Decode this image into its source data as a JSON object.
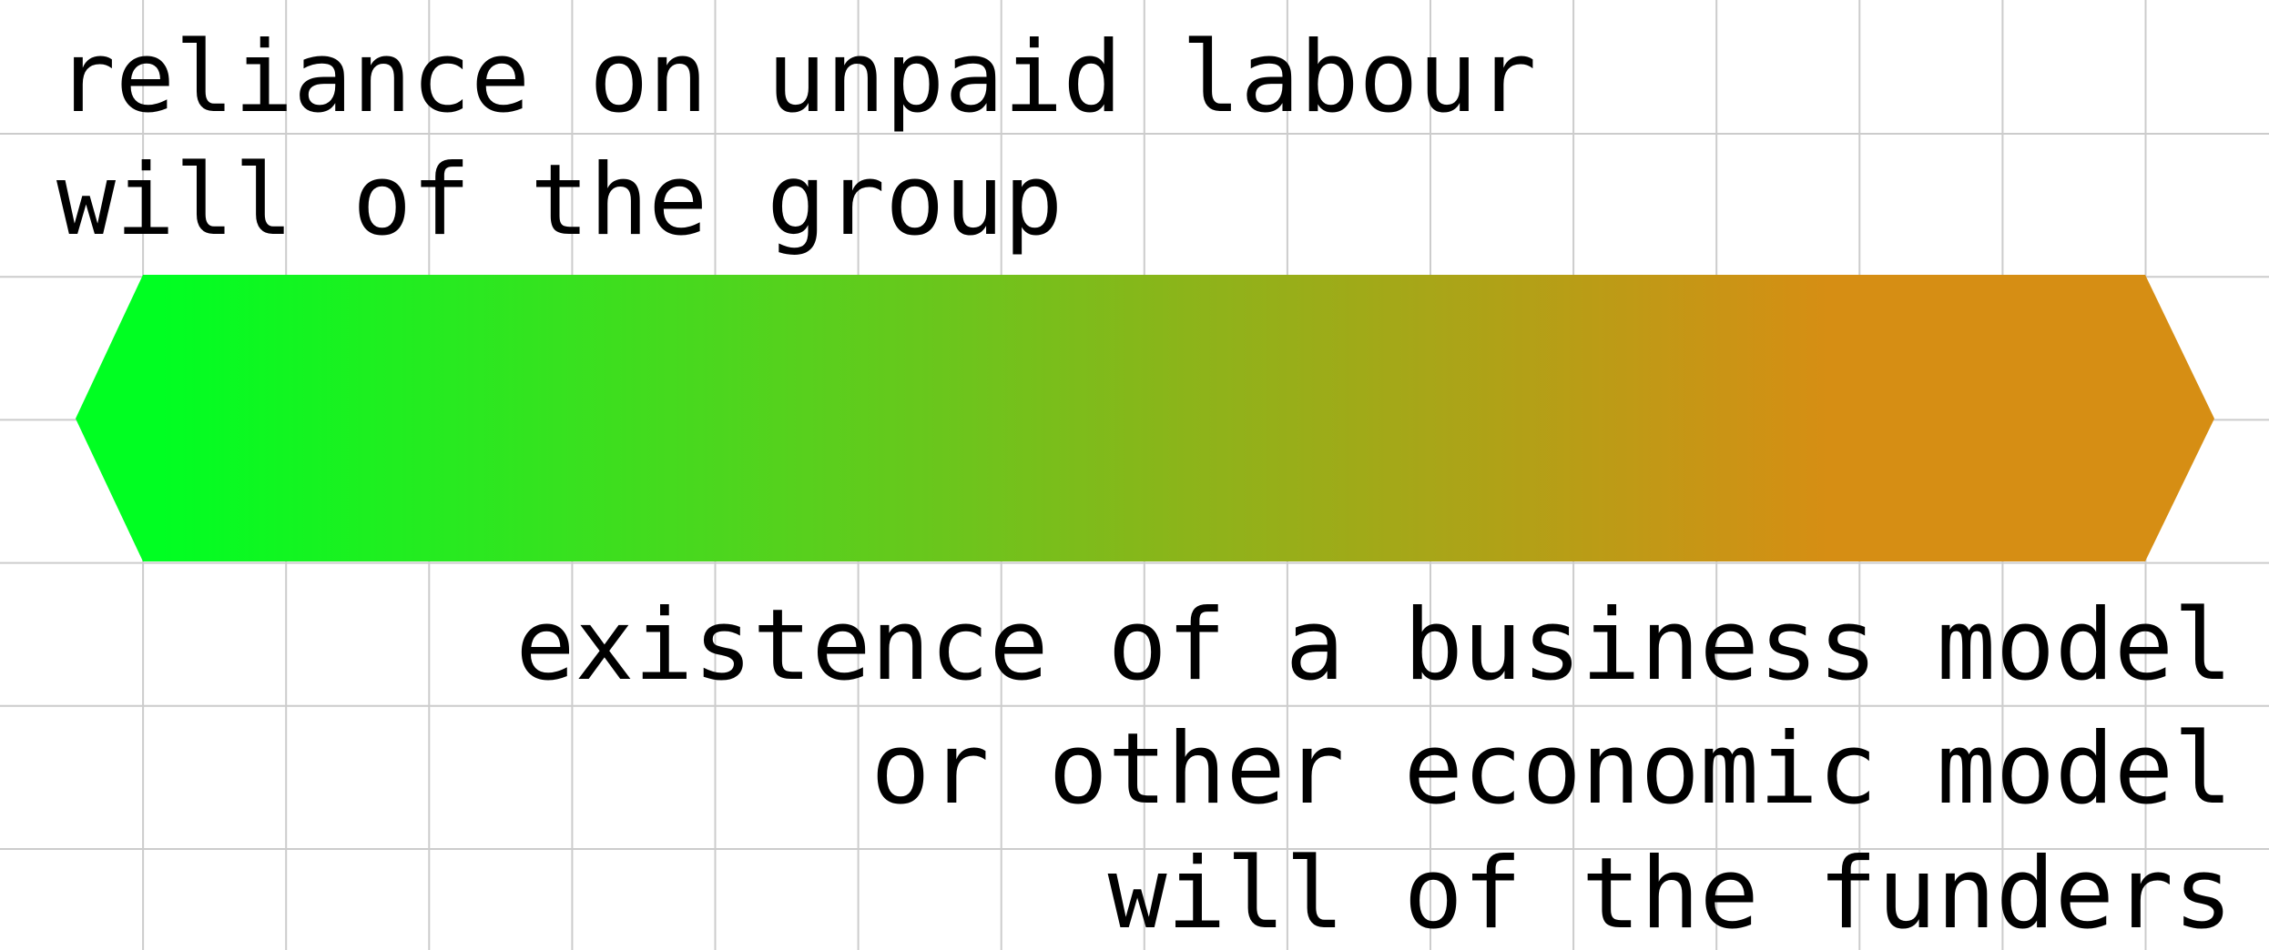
{
  "top_labels": [
    "reliance on unpaid labour",
    "will of the group"
  ],
  "bottom_labels": [
    "existence of a business model",
    "or other economic model",
    "will of the funders"
  ],
  "colors": {
    "gradient_start": "#00ff22",
    "gradient_mid": "#8cb41a",
    "gradient_end": "#d68e14",
    "grid_line": "#cccccc",
    "text": "#000000",
    "background": "#ffffff"
  }
}
